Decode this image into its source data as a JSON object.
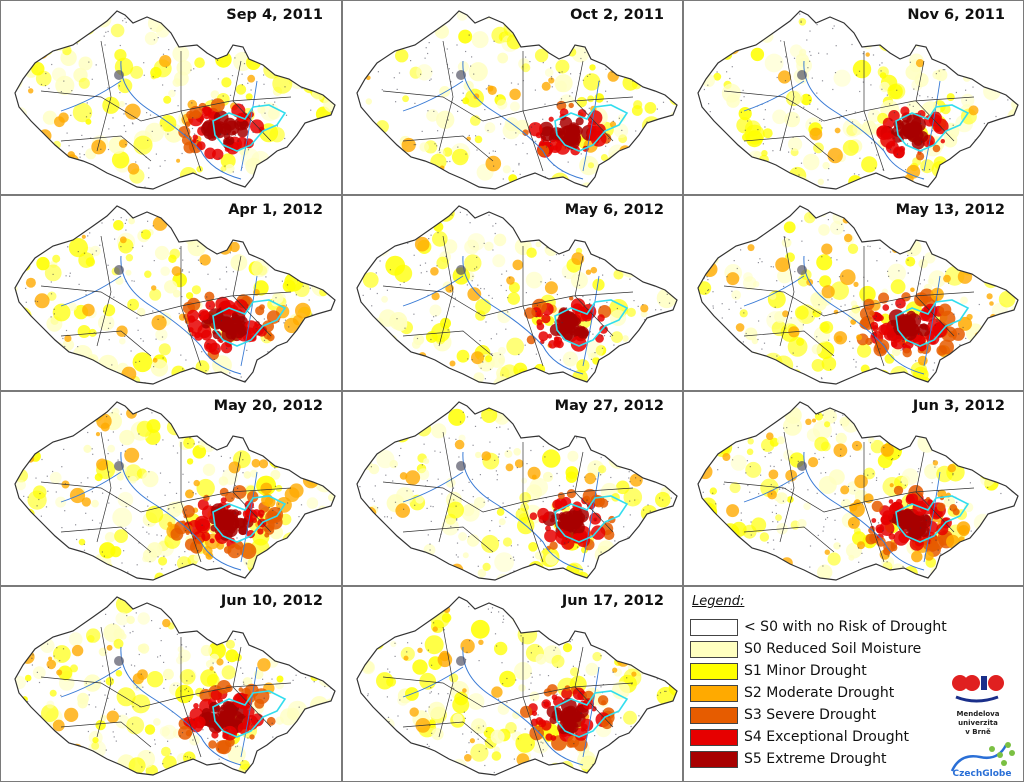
{
  "maps": [
    {
      "date": "Sep 4, 2011",
      "level": 0.55
    },
    {
      "date": "Oct 2, 2011",
      "level": 0.5
    },
    {
      "date": "Nov 6, 2011",
      "level": 0.5
    },
    {
      "date": "Apr 1, 2012",
      "level": 0.75
    },
    {
      "date": "May 6, 2012",
      "level": 0.55
    },
    {
      "date": "May 13, 2012",
      "level": 0.9
    },
    {
      "date": "May 20, 2012",
      "level": 0.9
    },
    {
      "date": "May 27, 2012",
      "level": 0.6
    },
    {
      "date": "Jun 3, 2012",
      "level": 1.0
    },
    {
      "date": "Jun 10, 2012",
      "level": 0.65
    },
    {
      "date": "Jun 17, 2012",
      "level": 0.6
    }
  ],
  "legend": {
    "title": "Legend:",
    "items": [
      {
        "label": "< S0 with no Risk of Drought",
        "color": "#ffffff"
      },
      {
        "label": "S0 Reduced Soil Moisture",
        "color": "#ffffc0"
      },
      {
        "label": "S1 Minor Drought",
        "color": "#ffff00"
      },
      {
        "label": "S2 Moderate Drought",
        "color": "#ffaa00"
      },
      {
        "label": "S3 Severe Drought",
        "color": "#e65c00"
      },
      {
        "label": "S4 Exceptional Drought",
        "color": "#e60000"
      },
      {
        "label": "S5 Extreme Drought",
        "color": "#a80000"
      }
    ]
  },
  "logos": {
    "mendel_line1": "Mendelova",
    "mendel_line2": "univerzita",
    "mendel_line3": "v Brně",
    "czechglobe": "CzechGlobe"
  }
}
